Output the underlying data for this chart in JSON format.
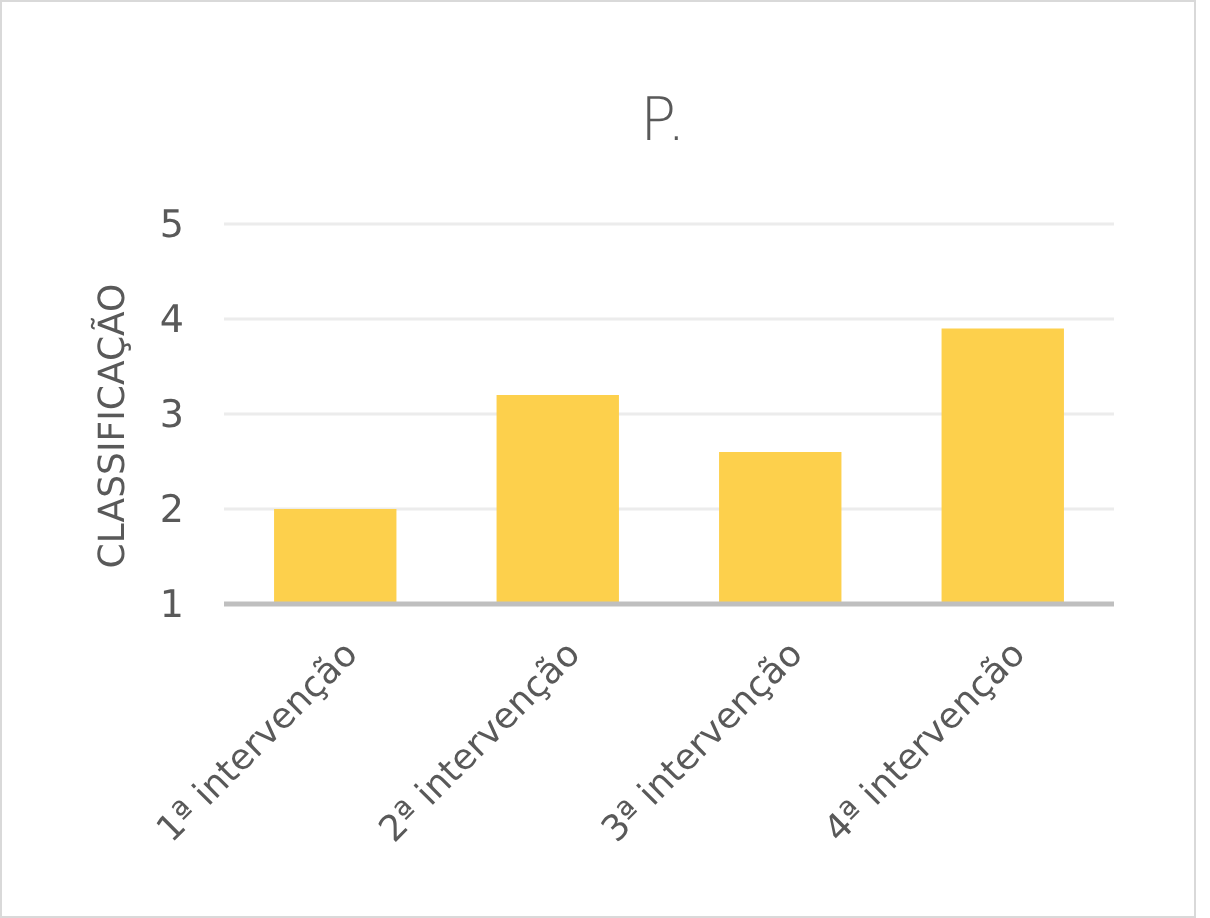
{
  "chart_data": {
    "type": "bar",
    "title": "P.",
    "ylabel": "CLASSIFICAÇÃO",
    "categories": [
      "1ª intervenção",
      "2ª intervenção",
      "3ª intervenção",
      "4ª intervenção"
    ],
    "values": [
      2.0,
      3.2,
      2.6,
      3.9
    ],
    "color": "#fdd04c",
    "ylim": [
      1,
      5
    ],
    "yticks": [
      1,
      2,
      3,
      4,
      5
    ],
    "grid": "y"
  }
}
